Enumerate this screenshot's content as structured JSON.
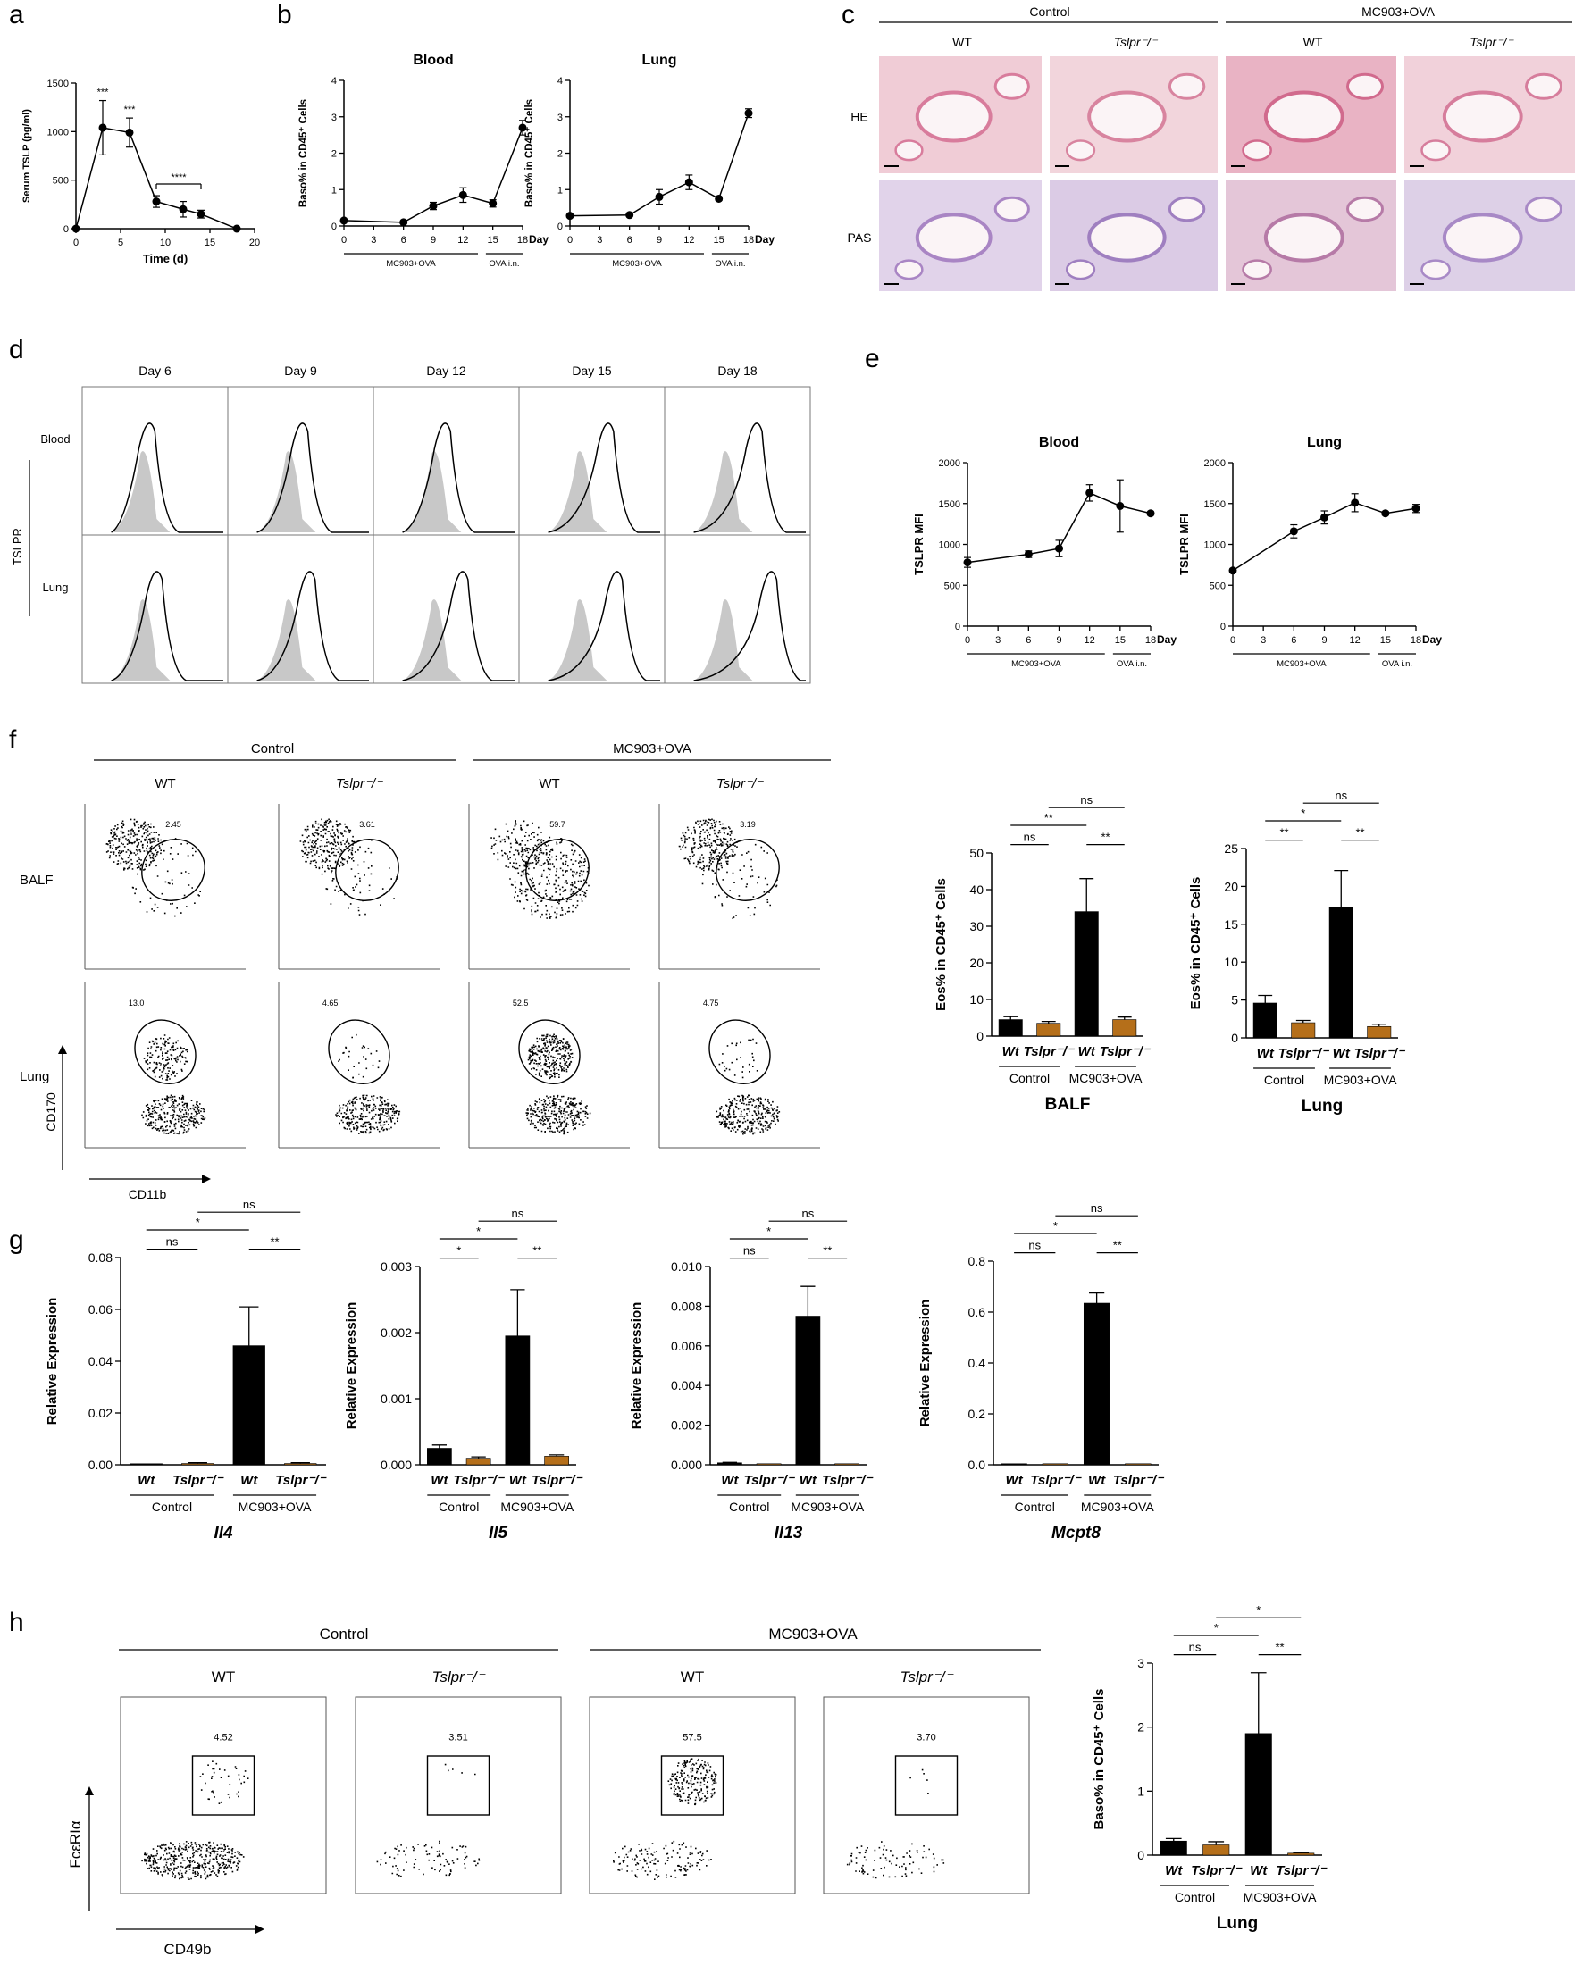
{
  "panel_labels": [
    "a",
    "b",
    "c",
    "d",
    "e",
    "f",
    "g",
    "h"
  ],
  "chart_data": [
    {
      "id": "a",
      "type": "line",
      "ylabel": "Serum TSLP (pg/ml)",
      "xlabel": "Time (d)",
      "xlim": [
        0,
        20
      ],
      "ylim": [
        0,
        1500
      ],
      "xticks": [
        "0",
        "5",
        "10",
        "15",
        "20"
      ],
      "yticks": [
        "0",
        "500",
        "1000",
        "1500"
      ],
      "x": [
        0,
        3,
        6,
        9,
        12,
        14,
        18
      ],
      "values": [
        0,
        1040,
        990,
        280,
        200,
        150,
        0
      ],
      "errors": [
        0,
        280,
        150,
        60,
        80,
        40,
        0
      ],
      "annotations": [
        "***",
        "***",
        "****"
      ]
    },
    {
      "id": "b1",
      "type": "line",
      "title": "Blood",
      "ylabel": "Baso% in CD45⁺ Cells",
      "xlabel": "Day",
      "xlim": [
        0,
        18
      ],
      "ylim": [
        0,
        4
      ],
      "xticks": [
        "0",
        "3",
        "6",
        "9",
        "12",
        "15",
        "18"
      ],
      "yticks": [
        "0",
        "1",
        "2",
        "3",
        "4"
      ],
      "x": [
        0,
        6,
        9,
        12,
        15,
        18
      ],
      "values": [
        0.15,
        0.1,
        0.55,
        0.85,
        0.62,
        2.7
      ],
      "errors": [
        0,
        0.03,
        0.1,
        0.2,
        0.1,
        0.2
      ],
      "phases": [
        "MC903+OVA",
        "OVA i.n."
      ]
    },
    {
      "id": "b2",
      "type": "line",
      "title": "Lung",
      "ylabel": "Baso% in CD45⁺ Cells",
      "xlabel": "Day",
      "xlim": [
        0,
        18
      ],
      "ylim": [
        0,
        4
      ],
      "xticks": [
        "0",
        "3",
        "6",
        "9",
        "12",
        "15",
        "18"
      ],
      "yticks": [
        "0",
        "1",
        "2",
        "3",
        "4"
      ],
      "x": [
        0,
        6,
        9,
        12,
        15,
        18
      ],
      "values": [
        0.28,
        0.3,
        0.8,
        1.2,
        0.75,
        3.1
      ],
      "errors": [
        0,
        0.03,
        0.2,
        0.2,
        0.05,
        0.12
      ],
      "phases": [
        "MC903+OVA",
        "OVA i.n."
      ]
    },
    {
      "id": "e1",
      "type": "line",
      "title": "Blood",
      "ylabel": "TSLPR MFI",
      "xlabel": "Day",
      "xlim": [
        0,
        18
      ],
      "ylim": [
        0,
        2000
      ],
      "xticks": [
        "0",
        "3",
        "6",
        "9",
        "12",
        "15",
        "18"
      ],
      "yticks": [
        "0",
        "500",
        "1000",
        "1500",
        "2000"
      ],
      "x": [
        0,
        6,
        9,
        12,
        15,
        18
      ],
      "values": [
        780,
        880,
        950,
        1630,
        1470,
        1380
      ],
      "errors": [
        60,
        40,
        100,
        100,
        320,
        20
      ],
      "phases": [
        "MC903+OVA",
        "OVA i.n."
      ]
    },
    {
      "id": "e2",
      "type": "line",
      "title": "Lung",
      "ylabel": "TSLPR MFI",
      "xlabel": "Day",
      "xlim": [
        0,
        18
      ],
      "ylim": [
        0,
        2000
      ],
      "xticks": [
        "0",
        "3",
        "6",
        "9",
        "12",
        "15",
        "18"
      ],
      "yticks": [
        "0",
        "500",
        "1000",
        "1500",
        "2000"
      ],
      "x": [
        0,
        6,
        9,
        12,
        15,
        18
      ],
      "values": [
        680,
        1160,
        1330,
        1510,
        1380,
        1440
      ],
      "errors": [
        20,
        80,
        80,
        110,
        20,
        50
      ],
      "phases": [
        "MC903+OVA",
        "OVA i.n."
      ]
    },
    {
      "id": "f1",
      "type": "bar",
      "title": "BALF",
      "ylabel": "Eos% in CD45⁺ Cells",
      "ylim": [
        0,
        50
      ],
      "yticks": [
        "0",
        "10",
        "20",
        "30",
        "40",
        "50"
      ],
      "categories": [
        "Wt",
        "Tslpr⁻/⁻",
        "Wt",
        "Tslpr⁻/⁻"
      ],
      "values": [
        4.5,
        3.5,
        34,
        4.5
      ],
      "errors": [
        0.8,
        0.5,
        9,
        0.7
      ],
      "colors": [
        "#000000",
        "#b56f1a",
        "#000000",
        "#b56f1a"
      ],
      "groups": [
        "Control",
        "MC903+OVA"
      ],
      "significance": [
        "**",
        "ns",
        "ns",
        "**"
      ]
    },
    {
      "id": "f2",
      "type": "bar",
      "title": "Lung",
      "ylabel": "Eos% in CD45⁺ Cells",
      "ylim": [
        0,
        25
      ],
      "yticks": [
        "0",
        "5",
        "10",
        "15",
        "20",
        "25"
      ],
      "categories": [
        "Wt",
        "Tslpr⁻/⁻",
        "Wt",
        "Tslpr⁻/⁻"
      ],
      "values": [
        4.6,
        2.0,
        17.3,
        1.5
      ],
      "errors": [
        1.0,
        0.3,
        4.8,
        0.3
      ],
      "colors": [
        "#000000",
        "#b56f1a",
        "#000000",
        "#b56f1a"
      ],
      "groups": [
        "Control",
        "MC903+OVA"
      ],
      "significance": [
        "*",
        "**",
        "ns",
        "**"
      ]
    },
    {
      "id": "g1",
      "type": "bar",
      "title": "Il4",
      "ylabel": "Relative Expression",
      "ylim": [
        0,
        0.08
      ],
      "yticks": [
        "0.00",
        "0.02",
        "0.04",
        "0.06",
        "0.08"
      ],
      "categories": [
        "Wt",
        "Tslpr⁻/⁻",
        "Wt",
        "Tslpr⁻/⁻"
      ],
      "values": [
        0.0,
        0.0005,
        0.046,
        0.0005
      ],
      "errors": [
        0,
        0.0003,
        0.015,
        0.0003
      ],
      "colors": [
        "#000000",
        "#b56f1a",
        "#000000",
        "#b56f1a"
      ],
      "groups": [
        "Control",
        "MC903+OVA"
      ],
      "significance": [
        "*",
        "ns",
        "ns",
        "**"
      ]
    },
    {
      "id": "g2",
      "type": "bar",
      "title": "Il5",
      "ylabel": "Relative Expression",
      "ylim": [
        0,
        0.003
      ],
      "yticks": [
        "0.000",
        "0.001",
        "0.002",
        "0.003"
      ],
      "categories": [
        "Wt",
        "Tslpr⁻/⁻",
        "Wt",
        "Tslpr⁻/⁻"
      ],
      "values": [
        0.00025,
        0.0001,
        0.00195,
        0.00013
      ],
      "errors": [
        5e-05,
        2e-05,
        0.0007,
        2e-05
      ],
      "colors": [
        "#000000",
        "#b56f1a",
        "#000000",
        "#b56f1a"
      ],
      "groups": [
        "Control",
        "MC903+OVA"
      ],
      "significance": [
        "*",
        "*",
        "ns",
        "**"
      ]
    },
    {
      "id": "g3",
      "type": "bar",
      "title": "Il13",
      "ylabel": "Relative Expression",
      "ylim": [
        0,
        0.01
      ],
      "yticks": [
        "0.000",
        "0.002",
        "0.004",
        "0.006",
        "0.008",
        "0.010"
      ],
      "categories": [
        "Wt",
        "Tslpr⁻/⁻",
        "Wt",
        "Tslpr⁻/⁻"
      ],
      "values": [
        0.0001,
        3e-05,
        0.0075,
        3e-05
      ],
      "errors": [
        2e-05,
        0,
        0.0015,
        0
      ],
      "colors": [
        "#000000",
        "#b56f1a",
        "#000000",
        "#b56f1a"
      ],
      "groups": [
        "Control",
        "MC903+OVA"
      ],
      "significance": [
        "*",
        "ns",
        "ns",
        "**"
      ]
    },
    {
      "id": "g4",
      "type": "bar",
      "title": "Mcpt8",
      "ylabel": "Relative Expression",
      "ylim": [
        0,
        0.8
      ],
      "yticks": [
        "0.0",
        "0.2",
        "0.4",
        "0.6",
        "0.8"
      ],
      "categories": [
        "Wt",
        "Tslpr⁻/⁻",
        "Wt",
        "Tslpr⁻/⁻"
      ],
      "values": [
        0.0,
        0.003,
        0.635,
        0.003
      ],
      "errors": [
        0,
        0,
        0.04,
        0
      ],
      "colors": [
        "#000000",
        "#b56f1a",
        "#000000",
        "#b56f1a"
      ],
      "groups": [
        "Control",
        "MC903+OVA"
      ],
      "significance": [
        "*",
        "ns",
        "ns",
        "**"
      ]
    },
    {
      "id": "h2",
      "type": "bar",
      "title": "Lung",
      "ylabel": "Baso% in CD45⁺ Cells",
      "ylim": [
        0,
        3
      ],
      "yticks": [
        "0",
        "1",
        "2",
        "3"
      ],
      "categories": [
        "Wt",
        "Tslpr⁻/⁻",
        "Wt",
        "Tslpr⁻/⁻"
      ],
      "values": [
        0.22,
        0.16,
        1.9,
        0.03
      ],
      "errors": [
        0.04,
        0.05,
        0.95,
        0.01
      ],
      "colors": [
        "#000000",
        "#b56f1a",
        "#000000",
        "#b56f1a"
      ],
      "groups": [
        "Control",
        "MC903+OVA"
      ],
      "significance": [
        "*",
        "ns",
        "*",
        "**"
      ]
    }
  ],
  "panel_c": {
    "groups": [
      "Control",
      "MC903+OVA"
    ],
    "columns": [
      "WT",
      "Tslpr⁻/⁻",
      "WT",
      "Tslpr⁻/⁻"
    ],
    "rows": [
      "HE",
      "PAS"
    ]
  },
  "panel_d": {
    "days": [
      "Day 6",
      "Day 9",
      "Day 12",
      "Day 15",
      "Day 18"
    ],
    "rows": [
      "Blood",
      "Lung"
    ],
    "axis_label": "TSLPR"
  },
  "panel_f": {
    "groups": [
      "Control",
      "MC903+OVA"
    ],
    "columns": [
      "WT",
      "Tslpr⁻/⁻",
      "WT",
      "Tslpr⁻/⁻"
    ],
    "rows": [
      "BALF",
      "Lung"
    ],
    "gate_values": [
      [
        "2.45",
        "3.61",
        "59.7",
        "3.19"
      ],
      [
        "13.0",
        "4.65",
        "52.5",
        "4.75"
      ]
    ],
    "xaxis": "CD11b",
    "yaxis": "CD170"
  },
  "panel_h": {
    "groups": [
      "Control",
      "MC903+OVA"
    ],
    "columns": [
      "WT",
      "Tslpr⁻/⁻",
      "WT",
      "Tslpr⁻/⁻"
    ],
    "gate_values": [
      "4.52",
      "3.51",
      "57.5",
      "3.70"
    ],
    "xaxis": "CD49b",
    "yaxis": "FcεRIα"
  }
}
